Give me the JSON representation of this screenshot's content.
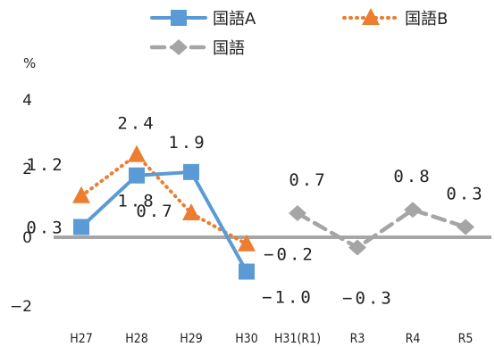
{
  "chart_data": {
    "type": "line",
    "categories": [
      "H27",
      "H28",
      "H29",
      "H30",
      "H31(R1)",
      "R3",
      "R4",
      "R5"
    ],
    "ylabel": "%",
    "ylim": [
      -2,
      4
    ],
    "yticks": [
      4,
      2,
      0,
      -2
    ],
    "ytick_labels": [
      "4",
      "2",
      "0",
      "−2"
    ],
    "grid": false,
    "legend_position": "top",
    "series": [
      {
        "name": "国語A",
        "color": "#5B9BD5",
        "style": "solid",
        "marker": "square",
        "values": [
          0.3,
          1.8,
          1.9,
          -1.0,
          null,
          null,
          null,
          null
        ],
        "labels": [
          "0.3",
          "1.8",
          "1.9",
          "−1.0",
          null,
          null,
          null,
          null
        ]
      },
      {
        "name": "国語B",
        "color": "#ED7D31",
        "style": "dotted",
        "marker": "triangle",
        "values": [
          1.2,
          2.4,
          0.7,
          -0.2,
          null,
          null,
          null,
          null
        ],
        "labels": [
          "1.2",
          "2.4",
          "0.7",
          "−0.2",
          null,
          null,
          null,
          null
        ]
      },
      {
        "name": "国語",
        "color": "#A5A5A5",
        "style": "dashed",
        "marker": "diamond",
        "values": [
          null,
          null,
          null,
          null,
          0.7,
          -0.3,
          0.8,
          0.3
        ],
        "labels": [
          null,
          null,
          null,
          null,
          "0.7",
          "−0.3",
          "0.8",
          "0.3"
        ]
      }
    ]
  }
}
